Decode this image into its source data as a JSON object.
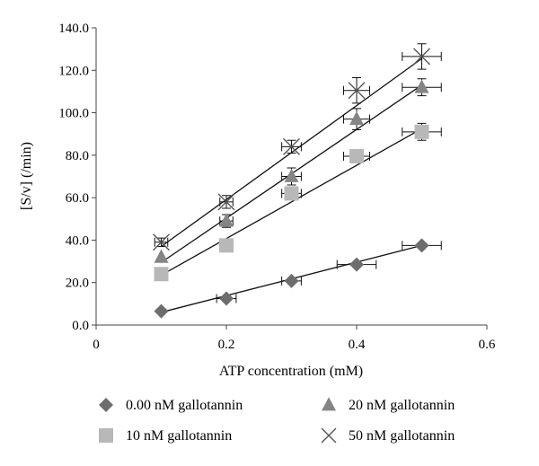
{
  "chart_data": {
    "type": "scatter",
    "title": "",
    "xlabel": "ATP concentration (mM)",
    "ylabel": "[S/v] (/min)",
    "xlim": [
      0,
      0.6
    ],
    "ylim": [
      0,
      140
    ],
    "x_ticks": [
      0,
      0.2,
      0.4,
      0.6
    ],
    "x_tick_labels": [
      "0",
      "0.2",
      "0.4",
      "0.6"
    ],
    "y_ticks": [
      0,
      20,
      40,
      60,
      80,
      100,
      120,
      140
    ],
    "y_tick_labels": [
      "0.0",
      "20.0",
      "40.0",
      "60.0",
      "80.0",
      "100.0",
      "120.0",
      "140.0"
    ],
    "grid": false,
    "legend_position": "bottom",
    "series": [
      {
        "name": "0.00 nM gallotannin",
        "marker": "diamond",
        "color": "#6d6d6d",
        "x": [
          0.1,
          0.2,
          0.3,
          0.4,
          0.5
        ],
        "y": [
          6.5,
          12.5,
          20.8,
          28.5,
          37.5
        ],
        "xerr": [
          0,
          0.015,
          0.015,
          0.03,
          0.03
        ],
        "yerr": [
          0,
          1,
          1,
          1,
          1
        ],
        "fit": [
          [
            0.1,
            6.0
          ],
          [
            0.5,
            37.5
          ]
        ]
      },
      {
        "name": "10 nM gallotannin",
        "marker": "square",
        "color": "#b8b8b8",
        "x": [
          0.1,
          0.2,
          0.3,
          0.4,
          0.5
        ],
        "y": [
          24,
          37.5,
          62,
          79.5,
          91
        ],
        "xerr": [
          0,
          0.01,
          0.015,
          0.02,
          0.03
        ],
        "yerr": [
          0,
          2,
          2,
          3,
          4
        ],
        "fit": [
          [
            0.1,
            23.5
          ],
          [
            0.5,
            92.5
          ]
        ]
      },
      {
        "name": "20 nM gallotannin",
        "marker": "triangle",
        "color": "#858585",
        "x": [
          0.1,
          0.2,
          0.3,
          0.4,
          0.5
        ],
        "y": [
          32,
          49,
          70,
          97,
          112
        ],
        "xerr": [
          0,
          0.01,
          0.015,
          0.02,
          0.03
        ],
        "yerr": [
          0,
          3,
          4,
          5,
          4
        ],
        "fit": [
          [
            0.1,
            29.5
          ],
          [
            0.5,
            113
          ]
        ]
      },
      {
        "name": "50 nM gallotannin",
        "marker": "x",
        "color": "#555555",
        "x": [
          0.1,
          0.2,
          0.3,
          0.4,
          0.5
        ],
        "y": [
          39,
          58,
          84,
          110.5,
          126.5
        ],
        "xerr": [
          0.01,
          0.01,
          0.015,
          0.02,
          0.03
        ],
        "yerr": [
          2,
          3,
          3,
          6,
          6
        ],
        "fit": [
          [
            0.1,
            37
          ],
          [
            0.5,
            125.5
          ]
        ]
      }
    ]
  }
}
